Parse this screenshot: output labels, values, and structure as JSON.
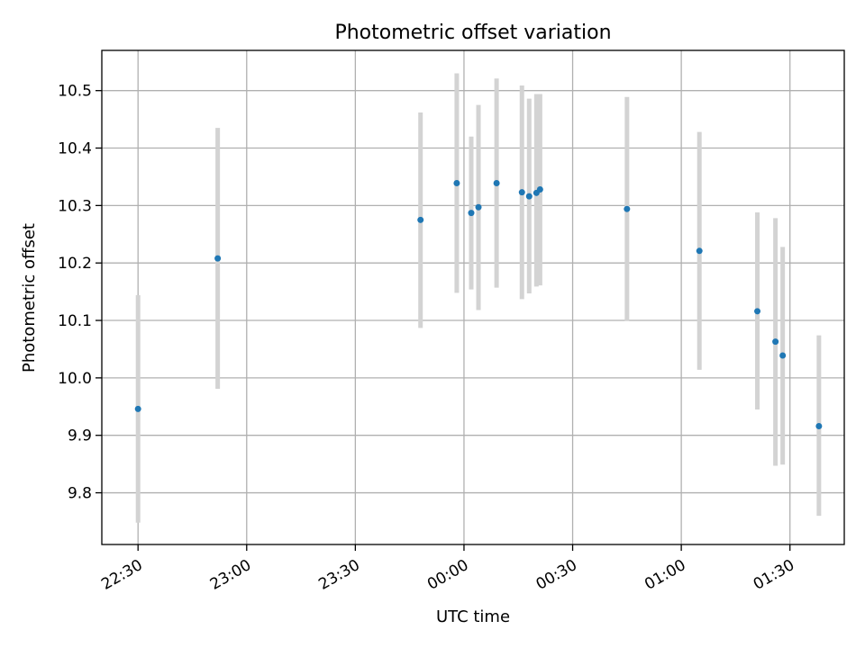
{
  "chart_data": {
    "type": "scatter",
    "title": "Photometric offset variation",
    "xlabel": "UTC time",
    "ylabel": "Photometric offset",
    "x_unit": "UTC time",
    "xlim": [
      "22:20",
      "01:45"
    ],
    "ylim": [
      9.71,
      10.57
    ],
    "x_ticks": [
      "22:30",
      "23:00",
      "23:30",
      "00:00",
      "00:30",
      "01:00",
      "01:30"
    ],
    "y_ticks": [
      "9.8",
      "9.9",
      "10.0",
      "10.1",
      "10.2",
      "10.3",
      "10.4",
      "10.5"
    ],
    "grid": true,
    "colors": {
      "point": "#1f77b4",
      "errorbar": "#d3d3d3",
      "grid": "#b0b0b0"
    },
    "points": [
      {
        "x": "22:30",
        "y": 9.946,
        "err_low": 9.748,
        "err_high": 10.144
      },
      {
        "x": "22:52",
        "y": 10.208,
        "err_low": 9.981,
        "err_high": 10.435
      },
      {
        "x": "23:48",
        "y": 10.275,
        "err_low": 10.087,
        "err_high": 10.462
      },
      {
        "x": "23:58",
        "y": 10.339,
        "err_low": 10.148,
        "err_high": 10.53
      },
      {
        "x": "00:02",
        "y": 10.287,
        "err_low": 10.154,
        "err_high": 10.42
      },
      {
        "x": "00:04",
        "y": 10.297,
        "err_low": 10.118,
        "err_high": 10.475
      },
      {
        "x": "00:09",
        "y": 10.339,
        "err_low": 10.157,
        "err_high": 10.521
      },
      {
        "x": "00:16",
        "y": 10.323,
        "err_low": 10.137,
        "err_high": 10.509
      },
      {
        "x": "00:18",
        "y": 10.316,
        "err_low": 10.147,
        "err_high": 10.486
      },
      {
        "x": "00:20",
        "y": 10.322,
        "err_low": 10.159,
        "err_high": 10.494
      },
      {
        "x": "00:21",
        "y": 10.328,
        "err_low": 10.161,
        "err_high": 10.494
      },
      {
        "x": "00:45",
        "y": 10.294,
        "err_low": 10.099,
        "err_high": 10.489
      },
      {
        "x": "01:05",
        "y": 10.221,
        "err_low": 10.014,
        "err_high": 10.428
      },
      {
        "x": "01:21",
        "y": 10.116,
        "err_low": 9.945,
        "err_high": 10.288
      },
      {
        "x": "01:26",
        "y": 10.063,
        "err_low": 9.847,
        "err_high": 10.278
      },
      {
        "x": "01:28",
        "y": 10.039,
        "err_low": 9.849,
        "err_high": 10.228
      },
      {
        "x": "01:38",
        "y": 9.916,
        "err_low": 9.76,
        "err_high": 10.074
      }
    ]
  }
}
